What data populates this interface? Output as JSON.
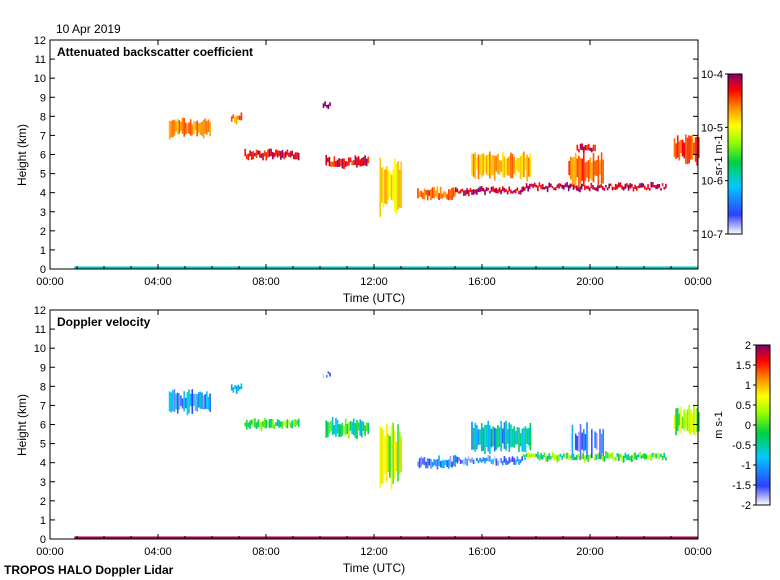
{
  "date_label": "10 Apr 2019",
  "footer_label": "TROPOS HALO Doppler Lidar",
  "chart_data": [
    {
      "type": "heatmap",
      "title": "Attenuated backscatter coefficient",
      "xlabel": "Time (UTC)",
      "ylabel": "Height (km)",
      "xlim": [
        0,
        24
      ],
      "ylim": [
        0,
        12
      ],
      "x_tick_values": [
        0,
        4,
        8,
        12,
        16,
        20,
        24
      ],
      "x_tick_labels": [
        "00:00",
        "04:00",
        "08:00",
        "12:00",
        "16:00",
        "20:00",
        "00:00"
      ],
      "y_ticks": [
        0,
        1,
        2,
        3,
        4,
        5,
        6,
        7,
        8,
        9,
        10,
        11,
        12
      ],
      "colorbar": {
        "scale": "log",
        "range": [
          1e-07,
          0.0001
        ],
        "tick_values": [
          -7,
          -6,
          -5,
          -4
        ],
        "tick_labels": [
          "10-7",
          "10-6",
          "10-5",
          "10-4"
        ],
        "unit": "sr-1 m-1"
      },
      "layers": [
        {
          "t0": 4.4,
          "t1": 5.9,
          "h": 7.4,
          "thick": 0.8,
          "level": 0.78
        },
        {
          "t0": 6.7,
          "t1": 7.1,
          "h": 7.9,
          "thick": 0.35,
          "level": 0.8
        },
        {
          "t0": 7.2,
          "t1": 9.2,
          "h": 6.0,
          "thick": 0.35,
          "level": 0.92
        },
        {
          "t0": 10.2,
          "t1": 11.8,
          "h": 5.6,
          "thick": 0.45,
          "level": 0.9
        },
        {
          "t0": 10.1,
          "t1": 10.4,
          "h": 8.6,
          "thick": 0.2,
          "level": 0.98
        },
        {
          "t0": 12.2,
          "t1": 13.0,
          "h": 4.3,
          "thick": 2.6,
          "level": 0.72
        },
        {
          "t0": 13.6,
          "t1": 15.0,
          "h": 3.9,
          "thick": 0.5,
          "level": 0.82
        },
        {
          "t0": 15.0,
          "t1": 17.5,
          "h": 4.1,
          "thick": 0.25,
          "level": 0.95
        },
        {
          "t0": 15.6,
          "t1": 17.8,
          "h": 5.4,
          "thick": 1.1,
          "level": 0.76
        },
        {
          "t0": 17.5,
          "t1": 22.8,
          "h": 4.3,
          "thick": 0.25,
          "level": 0.95
        },
        {
          "t0": 19.2,
          "t1": 20.5,
          "h": 5.2,
          "thick": 1.4,
          "level": 0.82
        },
        {
          "t0": 19.5,
          "t1": 20.2,
          "h": 6.3,
          "thick": 0.3,
          "level": 0.92
        },
        {
          "t0": 23.1,
          "t1": 24.0,
          "h": 6.3,
          "thick": 1.2,
          "level": 0.86
        }
      ],
      "surface": {
        "t0": 0.9,
        "t1": 24.0,
        "h": 0.08,
        "level": 0.35
      }
    },
    {
      "type": "heatmap",
      "title": "Doppler velocity",
      "xlabel": "Time (UTC)",
      "ylabel": "Height (km)",
      "xlim": [
        0,
        24
      ],
      "ylim": [
        0,
        12
      ],
      "x_tick_values": [
        0,
        4,
        8,
        12,
        16,
        20,
        24
      ],
      "x_tick_labels": [
        "00:00",
        "04:00",
        "08:00",
        "12:00",
        "16:00",
        "20:00",
        "00:00"
      ],
      "y_ticks": [
        0,
        1,
        2,
        3,
        4,
        5,
        6,
        7,
        8,
        9,
        10,
        11,
        12
      ],
      "colorbar": {
        "scale": "linear",
        "range": [
          -2,
          2
        ],
        "tick_values": [
          2,
          1.5,
          1,
          0.5,
          0,
          -0.5,
          -1,
          -1.5,
          -2
        ],
        "tick_labels": [
          "2",
          "1.5",
          "1",
          "0.5",
          "0",
          "-0.5",
          "-1",
          "-1.5",
          "-2"
        ],
        "unit": "m s-1"
      },
      "layers": [
        {
          "t0": 4.4,
          "t1": 5.9,
          "h": 7.2,
          "thick": 1.0,
          "level": 0.2
        },
        {
          "t0": 6.7,
          "t1": 7.1,
          "h": 7.9,
          "thick": 0.35,
          "level": 0.28
        },
        {
          "t0": 7.2,
          "t1": 9.2,
          "h": 6.0,
          "thick": 0.4,
          "level": 0.5
        },
        {
          "t0": 10.2,
          "t1": 11.8,
          "h": 5.8,
          "thick": 0.8,
          "level": 0.42
        },
        {
          "t0": 10.1,
          "t1": 10.4,
          "h": 8.6,
          "thick": 0.2,
          "level": 0.1
        },
        {
          "t0": 12.2,
          "t1": 13.0,
          "h": 4.4,
          "thick": 2.6,
          "level": 0.58
        },
        {
          "t0": 13.6,
          "t1": 15.0,
          "h": 4.0,
          "thick": 0.5,
          "level": 0.2
        },
        {
          "t0": 15.0,
          "t1": 17.5,
          "h": 4.1,
          "thick": 0.3,
          "level": 0.15
        },
        {
          "t0": 15.6,
          "t1": 17.8,
          "h": 5.3,
          "thick": 1.3,
          "level": 0.3
        },
        {
          "t0": 17.5,
          "t1": 22.8,
          "h": 4.3,
          "thick": 0.3,
          "level": 0.5
        },
        {
          "t0": 19.2,
          "t1": 20.5,
          "h": 5.1,
          "thick": 1.5,
          "level": 0.12
        },
        {
          "t0": 23.1,
          "t1": 24.0,
          "h": 6.2,
          "thick": 1.2,
          "level": 0.55
        }
      ],
      "surface": {
        "t0": 0.9,
        "t1": 24.0,
        "h": 0.08,
        "level": 0.97
      }
    }
  ]
}
